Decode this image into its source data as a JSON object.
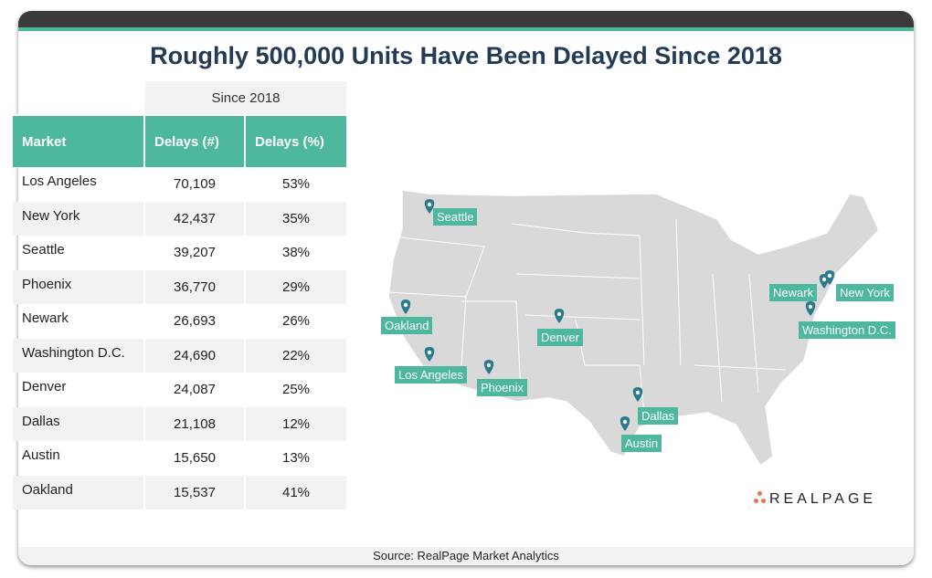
{
  "title": "Roughly 500,000 Units Have Been Delayed Since 2018",
  "table": {
    "group_header": "Since 2018",
    "columns": [
      "Market",
      "Delays (#)",
      "Delays (%)"
    ],
    "rows": [
      [
        "Los Angeles",
        "70,109",
        "53%"
      ],
      [
        "New York",
        "42,437",
        "35%"
      ],
      [
        "Seattle",
        "39,207",
        "38%"
      ],
      [
        "Phoenix",
        "36,770",
        "29%"
      ],
      [
        "Newark",
        "26,693",
        "26%"
      ],
      [
        "Washington D.C.",
        "24,690",
        "22%"
      ],
      [
        "Denver",
        "24,087",
        "25%"
      ],
      [
        "Dallas",
        "21,108",
        "12%"
      ],
      [
        "Austin",
        "15,650",
        "13%"
      ],
      [
        "Oakland",
        "15,537",
        "41%"
      ]
    ]
  },
  "map": {
    "markers": [
      "Seattle",
      "Oakland",
      "Los Angeles",
      "Phoenix",
      "Denver",
      "Dallas",
      "Austin",
      "Newark",
      "New York",
      "Washington D.C."
    ],
    "label_color": "#4db89e",
    "pin_color": "#2b7a8c",
    "land_color": "#d9d9d9"
  },
  "logo": "REALPAGE",
  "footer": "Source: RealPage Market Analytics"
}
